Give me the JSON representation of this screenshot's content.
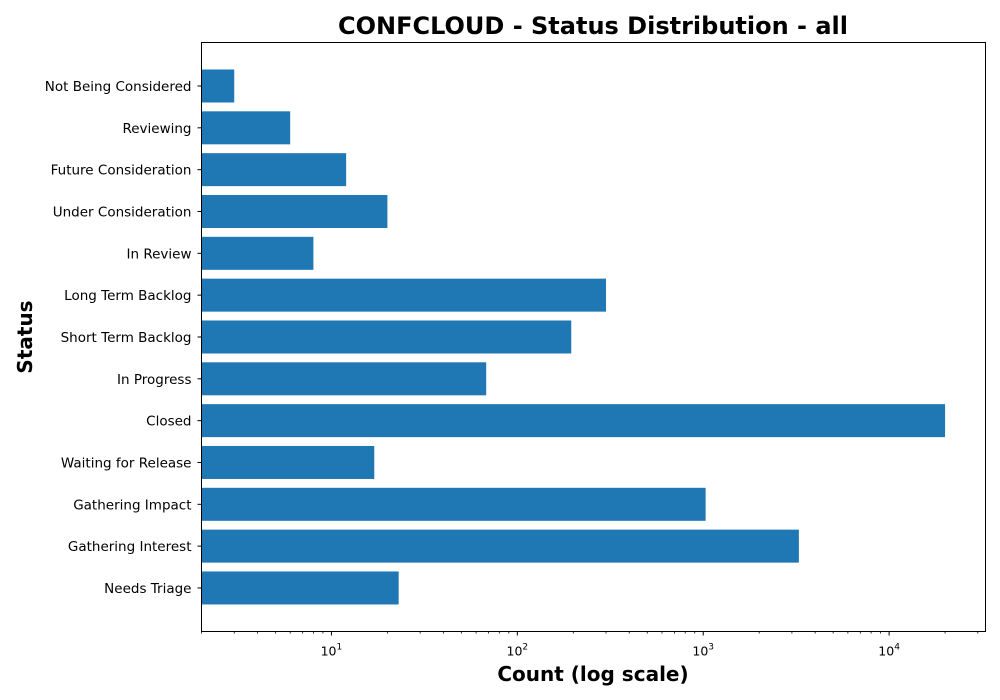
{
  "chart_data": {
    "type": "bar",
    "orientation": "horizontal",
    "title": "CONFCLOUD - Status Distribution - all",
    "xlabel": "Count (log scale)",
    "ylabel": "Status",
    "xscale": "log",
    "xlim": [
      2,
      33000
    ],
    "grid": false,
    "bar_color": "#1f77b4",
    "categories": [
      "Not Being Considered",
      "Reviewing",
      "Future Consideration",
      "Under Consideration",
      "In Review",
      "Long Term Backlog",
      "Short Term Backlog",
      "In Progress",
      "Closed",
      "Waiting for Release",
      "Gathering Impact",
      "Gathering Interest",
      "Needs Triage"
    ],
    "values": [
      3,
      6,
      12,
      20,
      8,
      300,
      195,
      68,
      20000,
      17,
      1030,
      3270,
      23
    ],
    "x_ticks": [
      {
        "base": "10",
        "exp": "1",
        "value": 10
      },
      {
        "base": "10",
        "exp": "2",
        "value": 100
      },
      {
        "base": "10",
        "exp": "3",
        "value": 1000
      },
      {
        "base": "10",
        "exp": "4",
        "value": 10000
      }
    ]
  }
}
